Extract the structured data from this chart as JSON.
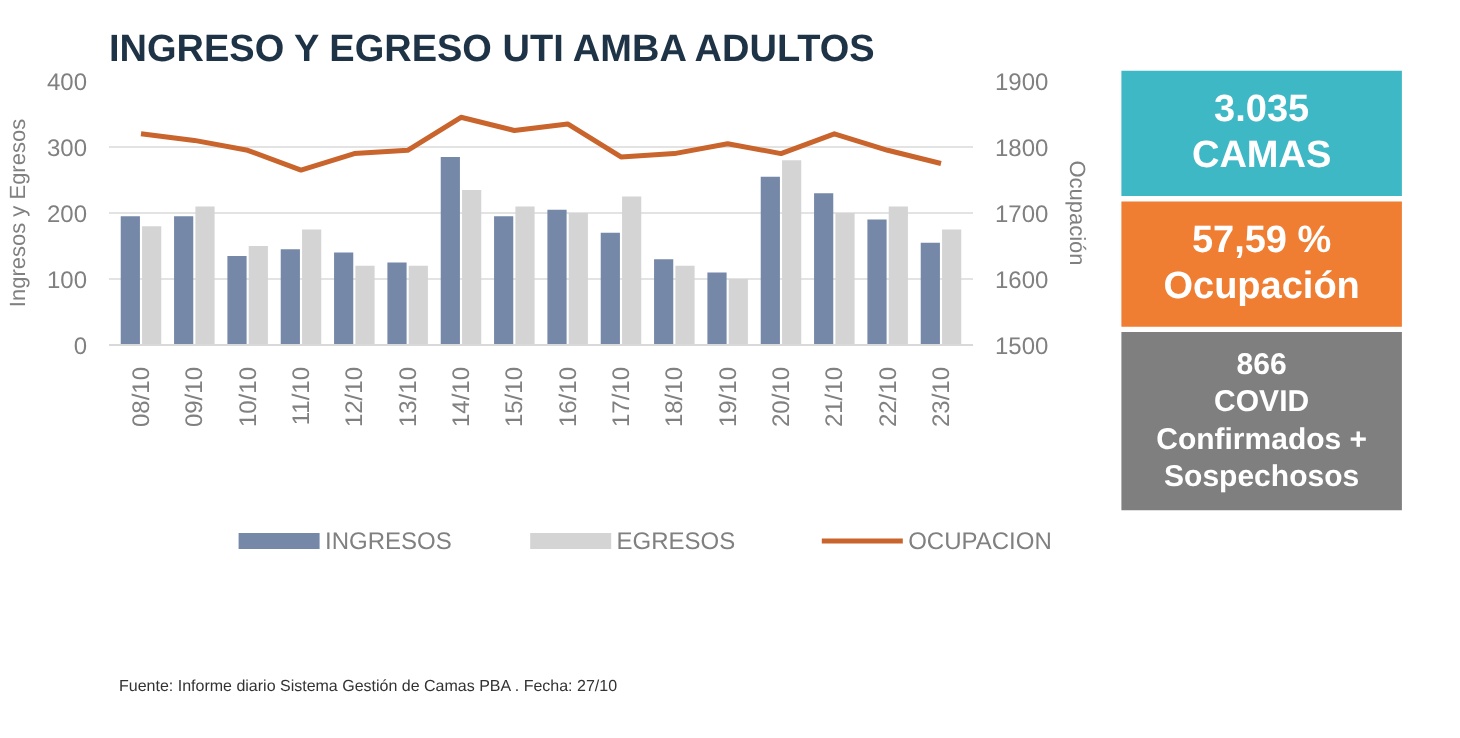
{
  "chart_data": [
    {
      "type": "bar",
      "title": "INGRESO Y EGRESO UTI AMBA ADULTOS",
      "ylabel": "Ingresos y Egresos",
      "y2label": "Ocupación",
      "categories": [
        "08/10",
        "09/10",
        "10/10",
        "11/10",
        "12/10",
        "13/10",
        "14/10",
        "15/10",
        "16/10",
        "17/10",
        "18/10",
        "19/10",
        "20/10",
        "21/10",
        "22/10",
        "23/10"
      ],
      "series": [
        {
          "name": "INGRESOS",
          "color": "#7588a8",
          "values": [
            195,
            195,
            135,
            145,
            140,
            125,
            285,
            195,
            205,
            170,
            130,
            110,
            255,
            230,
            190,
            155
          ]
        },
        {
          "name": "EGRESOS",
          "color": "#d4d4d4",
          "values": [
            180,
            210,
            150,
            175,
            120,
            120,
            235,
            210,
            200,
            225,
            120,
            100,
            280,
            200,
            210,
            175
          ]
        },
        {
          "name": "OCUPACION",
          "type": "line",
          "axis": "y2",
          "color": "#c8642c",
          "values": [
            1820,
            1810,
            1795,
            1765,
            1790,
            1795,
            1845,
            1825,
            1835,
            1785,
            1790,
            1805,
            1790,
            1820,
            1795,
            1775
          ]
        }
      ],
      "ylim": [
        0,
        400
      ],
      "yticks": [
        0,
        100,
        200,
        300,
        400
      ],
      "y2lim": [
        1500,
        1900
      ],
      "y2ticks": [
        1500,
        1600,
        1700,
        1800,
        1900
      ],
      "grid": "y",
      "legend": "bottom",
      "line_style": "solid",
      "annotations": [
        "Fuente: Informe diario Sistema Gestión de Camas PBA . Fecha: 27/10"
      ]
    },
    {
      "type": "other",
      "annotations": [
        "3.035\nCAMAS",
        "57,59 %\nOcupación",
        "866\nCOVID\nConfirmados +\nSospechosos"
      ],
      "colors": [
        "#3fb8c6",
        "#ef7d32",
        "#7f7f7f"
      ]
    }
  ]
}
